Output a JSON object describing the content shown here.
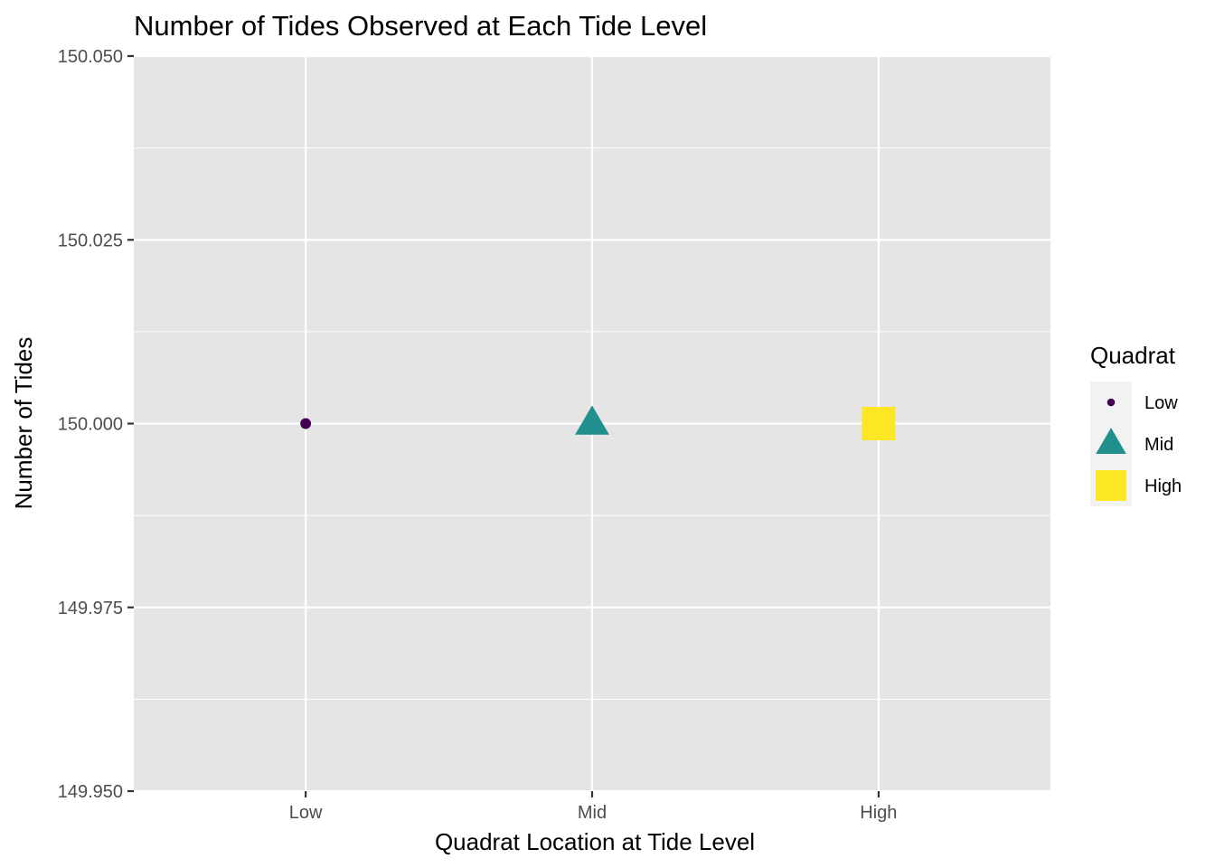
{
  "chart_data": {
    "type": "scatter",
    "title": "Number of Tides Observed at Each Tide Level",
    "xlabel": "Quadrat Location at Tide Level",
    "ylabel": "Number of Tides",
    "categories": [
      "Low",
      "Mid",
      "High"
    ],
    "x": [
      "Low",
      "Mid",
      "High"
    ],
    "y": [
      150,
      150,
      150
    ],
    "ylim": [
      149.95,
      150.05
    ],
    "y_ticks": [
      "149.950",
      "149.975",
      "150.000",
      "150.025",
      "150.050"
    ],
    "y_tick_values": [
      149.95,
      149.975,
      150.0,
      150.025,
      150.05
    ],
    "grid": true,
    "legend": {
      "title": "Quadrat",
      "placement": "right",
      "entries": [
        {
          "label": "Low",
          "shape": "circle",
          "color": "#440154"
        },
        {
          "label": "Mid",
          "shape": "triangle",
          "color": "#21908C"
        },
        {
          "label": "High",
          "shape": "square",
          "color": "#FDE725"
        }
      ]
    },
    "panel_background": "#E5E5E5",
    "grid_color": "#FFFFFF"
  }
}
